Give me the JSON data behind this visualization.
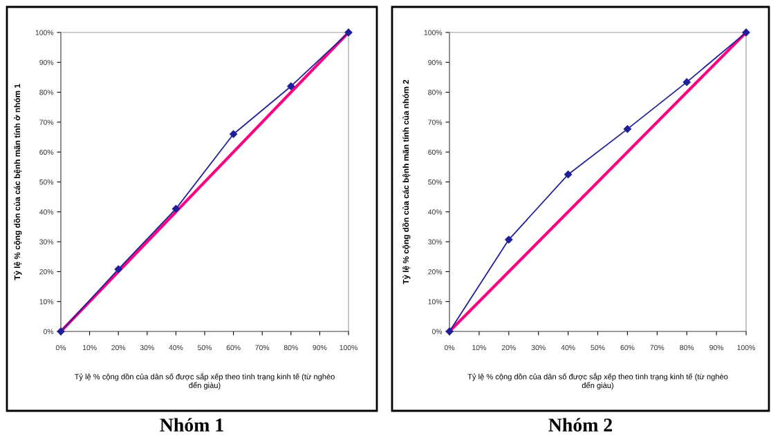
{
  "chart_data": [
    {
      "type": "line",
      "title": "Nhóm 1",
      "xlabel": "Tỷ lệ % cộng dồn của dân số được sắp xếp theo tình trạng kinh tế (từ nghèo\nđến giàu)",
      "ylabel": "Tỷ lệ % cộng dồn của các bệnh mãn tính ở nhóm 1",
      "xlim": [
        0,
        100
      ],
      "ylim": [
        0,
        100
      ],
      "xticks": [
        {
          "value": 0,
          "label": "0%"
        },
        {
          "value": 10,
          "label": "10%"
        },
        {
          "value": 20,
          "label": "20%"
        },
        {
          "value": 30,
          "label": "30%"
        },
        {
          "value": 40,
          "label": "40%"
        },
        {
          "value": 50,
          "label": "50%"
        },
        {
          "value": 60,
          "label": "60%"
        },
        {
          "value": 70,
          "label": "70%"
        },
        {
          "value": 80,
          "label": "80%"
        },
        {
          "value": 90,
          "label": "90%"
        },
        {
          "value": 100,
          "label": "100%"
        }
      ],
      "yticks": [
        {
          "value": 0,
          "label": "0%"
        },
        {
          "value": 10,
          "label": "10%"
        },
        {
          "value": 20,
          "label": "20%"
        },
        {
          "value": 30,
          "label": "30%"
        },
        {
          "value": 40,
          "label": "40%"
        },
        {
          "value": 50,
          "label": "50%"
        },
        {
          "value": 60,
          "label": "60%"
        },
        {
          "value": 70,
          "label": "70%"
        },
        {
          "value": 80,
          "label": "80%"
        },
        {
          "value": 90,
          "label": "90%"
        },
        {
          "value": 100,
          "label": "100%"
        }
      ],
      "grid": false,
      "series": [
        {
          "color": "#ff0080",
          "x": [
            0,
            100
          ],
          "values": [
            0,
            100
          ],
          "marker": "none"
        },
        {
          "color": "#1f1f9a",
          "x": [
            0,
            20,
            40,
            60,
            80,
            100
          ],
          "values": [
            0,
            20.8,
            41,
            66,
            82,
            100
          ],
          "marker": "diamond"
        }
      ]
    },
    {
      "type": "line",
      "title": "Nhóm 2",
      "xlabel": "Tỷ lệ % cộng dồn của dân số được sắp xếp theo tình trạng kinh tế (từ nghèo\nđến giàu)",
      "ylabel": "Tỷ lệ % cộng dồn của các bệnh mãn tính của nhóm 2",
      "xlim": [
        0,
        100
      ],
      "ylim": [
        0,
        100
      ],
      "xticks": [
        {
          "value": 0,
          "label": "0%"
        },
        {
          "value": 10,
          "label": "10%"
        },
        {
          "value": 20,
          "label": "20%"
        },
        {
          "value": 30,
          "label": "30%"
        },
        {
          "value": 40,
          "label": "40%"
        },
        {
          "value": 50,
          "label": "50%"
        },
        {
          "value": 60,
          "label": "60%"
        },
        {
          "value": 70,
          "label": "70%"
        },
        {
          "value": 80,
          "label": "80%"
        },
        {
          "value": 90,
          "label": "90%"
        },
        {
          "value": 100,
          "label": "100%"
        }
      ],
      "yticks": [
        {
          "value": 0,
          "label": "0%"
        },
        {
          "value": 10,
          "label": "10%"
        },
        {
          "value": 20,
          "label": "20%"
        },
        {
          "value": 30,
          "label": "30%"
        },
        {
          "value": 40,
          "label": "40%"
        },
        {
          "value": 50,
          "label": "50%"
        },
        {
          "value": 60,
          "label": "60%"
        },
        {
          "value": 70,
          "label": "70%"
        },
        {
          "value": 80,
          "label": "80%"
        },
        {
          "value": 90,
          "label": "90%"
        },
        {
          "value": 100,
          "label": "100%"
        }
      ],
      "grid": false,
      "series": [
        {
          "color": "#ff0080",
          "x": [
            0,
            100
          ],
          "values": [
            0,
            100
          ],
          "marker": "none"
        },
        {
          "color": "#1f1f9a",
          "x": [
            0,
            20,
            40,
            60,
            80,
            100
          ],
          "values": [
            0,
            30.7,
            52.5,
            67.7,
            83.4,
            100
          ],
          "marker": "diamond"
        }
      ]
    }
  ]
}
